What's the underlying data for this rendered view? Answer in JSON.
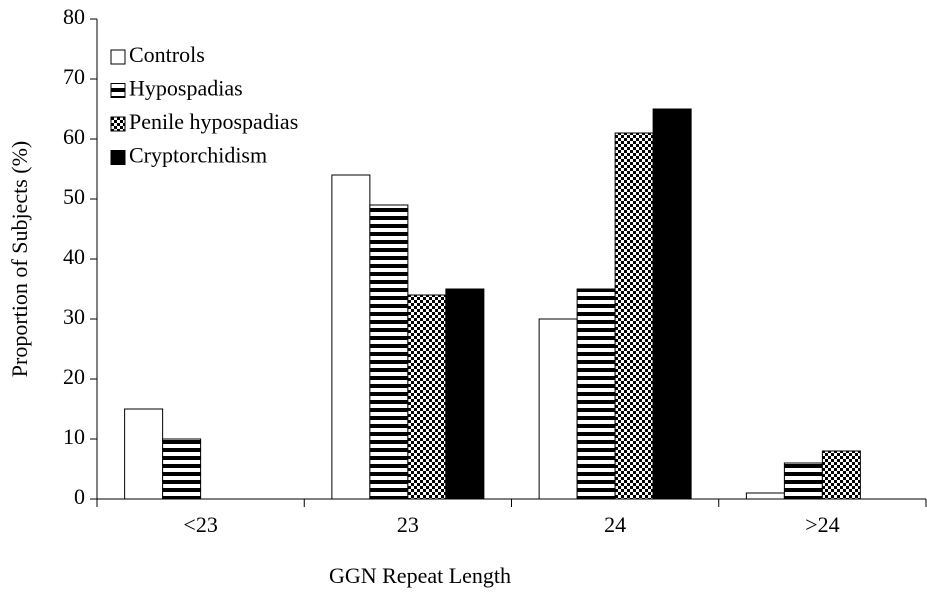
{
  "chart_data": {
    "type": "bar",
    "xlabel": "GGN Repeat Length",
    "ylabel": "Proportion of Subjects (%)",
    "categories": [
      "<23",
      "23",
      "24",
      ">24"
    ],
    "series": [
      {
        "name": "Controls",
        "color": "#ffffff",
        "pattern": "none",
        "values": [
          15,
          54,
          30,
          1
        ]
      },
      {
        "name": "Hypospadias",
        "color": "#000000",
        "pattern": "horizontal-stripes",
        "values": [
          10,
          49,
          35,
          6
        ]
      },
      {
        "name": "Penile hypospadias",
        "color": "#000000",
        "pattern": "checkerboard",
        "values": [
          0,
          34,
          61,
          8
        ]
      },
      {
        "name": "Cryptorchidism",
        "color": "#000000",
        "pattern": "solid",
        "values": [
          0,
          35,
          65,
          0
        ]
      }
    ],
    "ylim": [
      0,
      80
    ],
    "yticks": [
      0,
      10,
      20,
      30,
      40,
      50,
      60,
      70,
      80
    ],
    "grid": false,
    "legend": "upper-left"
  }
}
